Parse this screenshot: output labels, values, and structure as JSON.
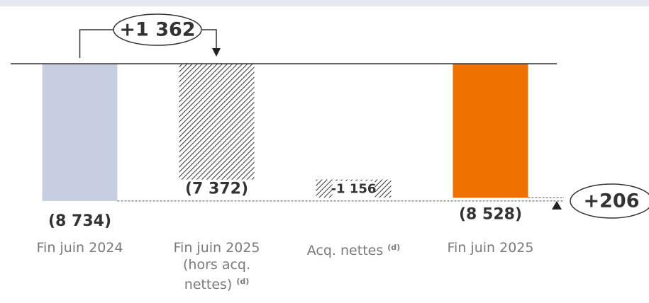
{
  "chart_data": {
    "type": "waterfall",
    "categories": [
      "Fin juin 2024",
      "Fin juin 2025 (hors acq. nettes)",
      "Acq. nettes",
      "Fin juin 2025"
    ],
    "category_notes": [
      null,
      "(d)",
      "(d)",
      null
    ],
    "values": [
      -8734,
      -7372,
      -1156,
      -8528
    ],
    "value_labels": [
      "(8 734)",
      "(7 372)",
      "-1 156",
      "(8 528)"
    ],
    "kinds": [
      "total",
      "total",
      "delta",
      "total"
    ],
    "colors": [
      "#c5cfe1",
      "hatch",
      "hatch",
      "#ef7100"
    ],
    "ylim": [
      -10000,
      0
    ],
    "annotations": [
      "+1 362",
      "+206"
    ]
  }
}
